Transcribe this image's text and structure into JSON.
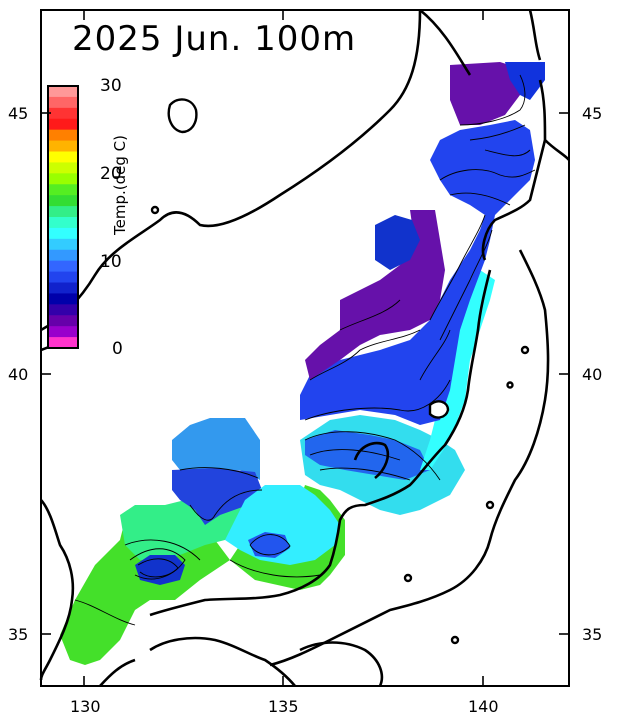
{
  "title": "2025 Jun. 100m",
  "colorbar": {
    "label": "Temp.(deg C)",
    "ticks": [
      "30",
      "20",
      "10",
      "0"
    ],
    "colors": [
      "#ff9999",
      "#ff6666",
      "#ff3333",
      "#ff1a1a",
      "#ff8000",
      "#ffb300",
      "#ffff00",
      "#ccff00",
      "#99ff00",
      "#55ee22",
      "#33dd33",
      "#33ee88",
      "#33ffcc",
      "#33ffff",
      "#33ccff",
      "#3399ff",
      "#3366ff",
      "#2244ee",
      "#1122cc",
      "#0000aa",
      "#3300aa",
      "#6600aa",
      "#9900cc",
      "#ff33cc"
    ]
  },
  "axes": {
    "x_ticks": [
      "130",
      "135",
      "140"
    ],
    "y_left_ticks": [
      "45",
      "40",
      "35"
    ],
    "y_right_ticks": [
      "45",
      "40",
      "35"
    ]
  },
  "icons": {
    "colorbar": "temperature-colorbar",
    "map": "japan-sea-temperature-map"
  }
}
